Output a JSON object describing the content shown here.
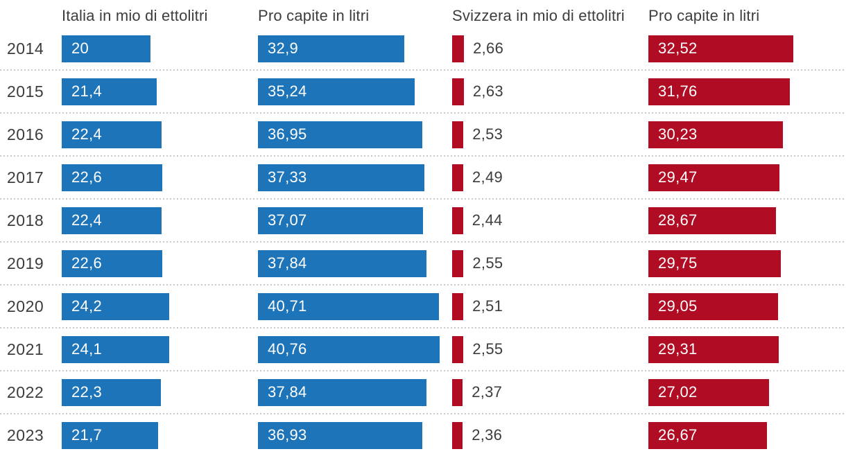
{
  "chart_data": {
    "type": "bar",
    "orientation": "horizontal",
    "title": "",
    "categories": [
      "2014",
      "2015",
      "2016",
      "2017",
      "2018",
      "2019",
      "2020",
      "2021",
      "2022",
      "2023"
    ],
    "series": [
      {
        "key": "italia_hl",
        "name": "Italia in mio di ettolitri",
        "color": "#1e74b8",
        "value_label_position": "inside",
        "values": [
          20,
          21.4,
          22.4,
          22.6,
          22.4,
          22.6,
          24.2,
          24.1,
          22.3,
          21.7
        ],
        "labels": [
          "20",
          "21,4",
          "22,4",
          "22,6",
          "22,4",
          "22,6",
          "24,2",
          "24,1",
          "22,3",
          "21,7"
        ]
      },
      {
        "key": "italia_pro_capite",
        "name": "Pro capite in litri",
        "color": "#1e74b8",
        "value_label_position": "inside",
        "values": [
          32.9,
          35.24,
          36.95,
          37.33,
          37.07,
          37.84,
          40.71,
          40.76,
          37.84,
          36.93
        ],
        "labels": [
          "32,9",
          "35,24",
          "36,95",
          "37,33",
          "37,07",
          "37,84",
          "40,71",
          "40,76",
          "37,84",
          "36,93"
        ]
      },
      {
        "key": "svizzera_hl",
        "name": "Svizzera in mio di ettolitri",
        "color": "#b00c24",
        "value_label_position": "outside",
        "values": [
          2.66,
          2.63,
          2.53,
          2.49,
          2.44,
          2.55,
          2.51,
          2.55,
          2.37,
          2.36
        ],
        "labels": [
          "2,66",
          "2,63",
          "2,53",
          "2,49",
          "2,44",
          "2,55",
          "2,51",
          "2,55",
          "2,37",
          "2,36"
        ]
      },
      {
        "key": "svizzera_pro_capite",
        "name": "Pro capite in litri",
        "color": "#b00c24",
        "value_label_position": "inside",
        "values": [
          32.52,
          31.76,
          30.23,
          29.47,
          28.67,
          29.75,
          29.05,
          29.31,
          27.02,
          26.67
        ],
        "labels": [
          "32,52",
          "31,76",
          "30,23",
          "29,47",
          "28,67",
          "29,75",
          "29,05",
          "29,31",
          "27,02",
          "26,67"
        ]
      }
    ],
    "layout_hints": {
      "shared_linear_scale": true,
      "axis_shown": false,
      "row_separator_style": "dotted",
      "separator_color": "#c9c9c9",
      "text_color": "#3c3c3c",
      "background_color": "#ffffff",
      "legend": "none"
    }
  }
}
